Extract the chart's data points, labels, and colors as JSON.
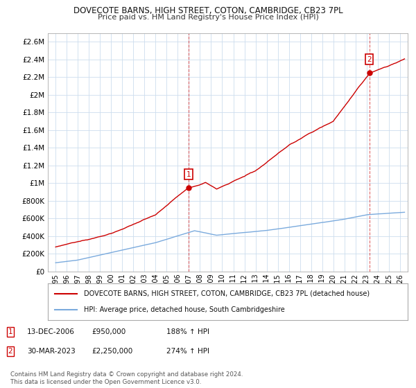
{
  "title": "DOVECOTE BARNS, HIGH STREET, COTON, CAMBRIDGE, CB23 7PL",
  "subtitle": "Price paid vs. HM Land Registry's House Price Index (HPI)",
  "property_label": "DOVECOTE BARNS, HIGH STREET, COTON, CAMBRIDGE, CB23 7PL (detached house)",
  "hpi_label": "HPI: Average price, detached house, South Cambridgeshire",
  "footnote": "Contains HM Land Registry data © Crown copyright and database right 2024.\nThis data is licensed under the Open Government Licence v3.0.",
  "ylim": [
    0,
    2700000
  ],
  "yticks": [
    0,
    200000,
    400000,
    600000,
    800000,
    1000000,
    1200000,
    1400000,
    1600000,
    1800000,
    2000000,
    2200000,
    2400000,
    2600000
  ],
  "ytick_labels": [
    "£0",
    "£200K",
    "£400K",
    "£600K",
    "£800K",
    "£1M",
    "£1.2M",
    "£1.4M",
    "£1.6M",
    "£1.8M",
    "£2M",
    "£2.2M",
    "£2.4M",
    "£2.6M"
  ],
  "property_color": "#cc0000",
  "hpi_color": "#7aaadd",
  "background_color": "#ffffff",
  "plot_bg_color": "#ffffff",
  "grid_color": "#ccddee",
  "marker1_x": 2006.95,
  "marker1_y": 950000,
  "marker2_x": 2023.24,
  "marker2_y": 2250000,
  "marker1_label": "1",
  "marker2_label": "2",
  "xlim_left": 1994.3,
  "xlim_right": 2026.7
}
